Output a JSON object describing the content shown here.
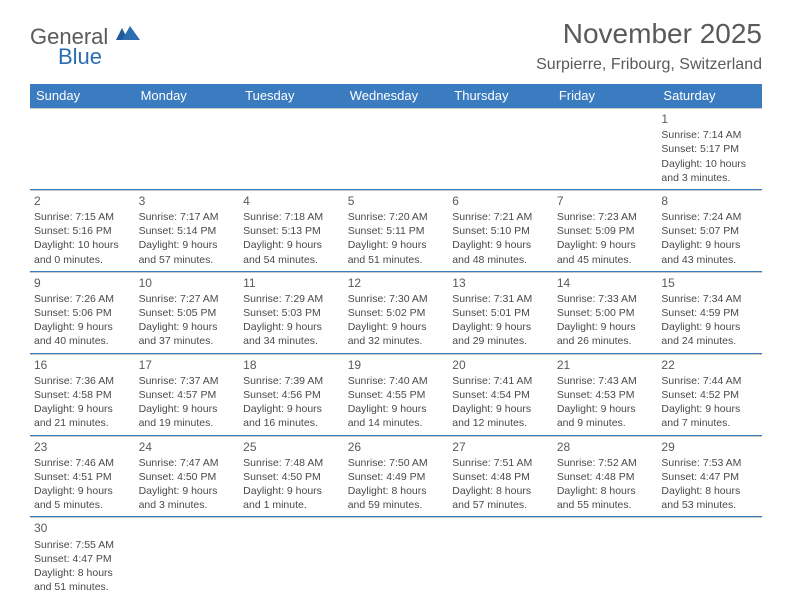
{
  "brand": {
    "word1": "General",
    "word2": "Blue"
  },
  "title": "November 2025",
  "subtitle": "Surpierre, Fribourg, Switzerland",
  "colors": {
    "header_bg": "#3b7bbf",
    "header_text": "#ffffff",
    "week_border": "#3b7bbf",
    "cell_border": "#c9c9c9",
    "text": "#4a4a4a",
    "brand_blue": "#2b6db0"
  },
  "day_labels": [
    "Sunday",
    "Monday",
    "Tuesday",
    "Wednesday",
    "Thursday",
    "Friday",
    "Saturday"
  ],
  "weeks": [
    [
      null,
      null,
      null,
      null,
      null,
      null,
      {
        "n": "1",
        "sunrise": "Sunrise: 7:14 AM",
        "sunset": "Sunset: 5:17 PM",
        "daylight": "Daylight: 10 hours and 3 minutes."
      }
    ],
    [
      {
        "n": "2",
        "sunrise": "Sunrise: 7:15 AM",
        "sunset": "Sunset: 5:16 PM",
        "daylight": "Daylight: 10 hours and 0 minutes."
      },
      {
        "n": "3",
        "sunrise": "Sunrise: 7:17 AM",
        "sunset": "Sunset: 5:14 PM",
        "daylight": "Daylight: 9 hours and 57 minutes."
      },
      {
        "n": "4",
        "sunrise": "Sunrise: 7:18 AM",
        "sunset": "Sunset: 5:13 PM",
        "daylight": "Daylight: 9 hours and 54 minutes."
      },
      {
        "n": "5",
        "sunrise": "Sunrise: 7:20 AM",
        "sunset": "Sunset: 5:11 PM",
        "daylight": "Daylight: 9 hours and 51 minutes."
      },
      {
        "n": "6",
        "sunrise": "Sunrise: 7:21 AM",
        "sunset": "Sunset: 5:10 PM",
        "daylight": "Daylight: 9 hours and 48 minutes."
      },
      {
        "n": "7",
        "sunrise": "Sunrise: 7:23 AM",
        "sunset": "Sunset: 5:09 PM",
        "daylight": "Daylight: 9 hours and 45 minutes."
      },
      {
        "n": "8",
        "sunrise": "Sunrise: 7:24 AM",
        "sunset": "Sunset: 5:07 PM",
        "daylight": "Daylight: 9 hours and 43 minutes."
      }
    ],
    [
      {
        "n": "9",
        "sunrise": "Sunrise: 7:26 AM",
        "sunset": "Sunset: 5:06 PM",
        "daylight": "Daylight: 9 hours and 40 minutes."
      },
      {
        "n": "10",
        "sunrise": "Sunrise: 7:27 AM",
        "sunset": "Sunset: 5:05 PM",
        "daylight": "Daylight: 9 hours and 37 minutes."
      },
      {
        "n": "11",
        "sunrise": "Sunrise: 7:29 AM",
        "sunset": "Sunset: 5:03 PM",
        "daylight": "Daylight: 9 hours and 34 minutes."
      },
      {
        "n": "12",
        "sunrise": "Sunrise: 7:30 AM",
        "sunset": "Sunset: 5:02 PM",
        "daylight": "Daylight: 9 hours and 32 minutes."
      },
      {
        "n": "13",
        "sunrise": "Sunrise: 7:31 AM",
        "sunset": "Sunset: 5:01 PM",
        "daylight": "Daylight: 9 hours and 29 minutes."
      },
      {
        "n": "14",
        "sunrise": "Sunrise: 7:33 AM",
        "sunset": "Sunset: 5:00 PM",
        "daylight": "Daylight: 9 hours and 26 minutes."
      },
      {
        "n": "15",
        "sunrise": "Sunrise: 7:34 AM",
        "sunset": "Sunset: 4:59 PM",
        "daylight": "Daylight: 9 hours and 24 minutes."
      }
    ],
    [
      {
        "n": "16",
        "sunrise": "Sunrise: 7:36 AM",
        "sunset": "Sunset: 4:58 PM",
        "daylight": "Daylight: 9 hours and 21 minutes."
      },
      {
        "n": "17",
        "sunrise": "Sunrise: 7:37 AM",
        "sunset": "Sunset: 4:57 PM",
        "daylight": "Daylight: 9 hours and 19 minutes."
      },
      {
        "n": "18",
        "sunrise": "Sunrise: 7:39 AM",
        "sunset": "Sunset: 4:56 PM",
        "daylight": "Daylight: 9 hours and 16 minutes."
      },
      {
        "n": "19",
        "sunrise": "Sunrise: 7:40 AM",
        "sunset": "Sunset: 4:55 PM",
        "daylight": "Daylight: 9 hours and 14 minutes."
      },
      {
        "n": "20",
        "sunrise": "Sunrise: 7:41 AM",
        "sunset": "Sunset: 4:54 PM",
        "daylight": "Daylight: 9 hours and 12 minutes."
      },
      {
        "n": "21",
        "sunrise": "Sunrise: 7:43 AM",
        "sunset": "Sunset: 4:53 PM",
        "daylight": "Daylight: 9 hours and 9 minutes."
      },
      {
        "n": "22",
        "sunrise": "Sunrise: 7:44 AM",
        "sunset": "Sunset: 4:52 PM",
        "daylight": "Daylight: 9 hours and 7 minutes."
      }
    ],
    [
      {
        "n": "23",
        "sunrise": "Sunrise: 7:46 AM",
        "sunset": "Sunset: 4:51 PM",
        "daylight": "Daylight: 9 hours and 5 minutes."
      },
      {
        "n": "24",
        "sunrise": "Sunrise: 7:47 AM",
        "sunset": "Sunset: 4:50 PM",
        "daylight": "Daylight: 9 hours and 3 minutes."
      },
      {
        "n": "25",
        "sunrise": "Sunrise: 7:48 AM",
        "sunset": "Sunset: 4:50 PM",
        "daylight": "Daylight: 9 hours and 1 minute."
      },
      {
        "n": "26",
        "sunrise": "Sunrise: 7:50 AM",
        "sunset": "Sunset: 4:49 PM",
        "daylight": "Daylight: 8 hours and 59 minutes."
      },
      {
        "n": "27",
        "sunrise": "Sunrise: 7:51 AM",
        "sunset": "Sunset: 4:48 PM",
        "daylight": "Daylight: 8 hours and 57 minutes."
      },
      {
        "n": "28",
        "sunrise": "Sunrise: 7:52 AM",
        "sunset": "Sunset: 4:48 PM",
        "daylight": "Daylight: 8 hours and 55 minutes."
      },
      {
        "n": "29",
        "sunrise": "Sunrise: 7:53 AM",
        "sunset": "Sunset: 4:47 PM",
        "daylight": "Daylight: 8 hours and 53 minutes."
      }
    ],
    [
      {
        "n": "30",
        "sunrise": "Sunrise: 7:55 AM",
        "sunset": "Sunset: 4:47 PM",
        "daylight": "Daylight: 8 hours and 51 minutes."
      },
      null,
      null,
      null,
      null,
      null,
      null
    ]
  ]
}
